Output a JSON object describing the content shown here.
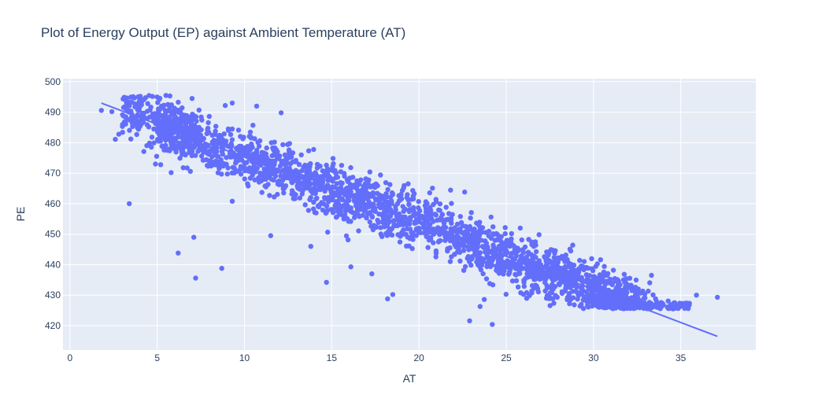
{
  "chart_data": {
    "type": "scatter",
    "title": "Plot of Energy Output (EP) against Ambient Temperature (AT)",
    "xlabel": "AT",
    "ylabel": "PE",
    "xlim": [
      -0.4,
      39.3
    ],
    "ylim": [
      412,
      501
    ],
    "xticks": [
      0,
      5,
      10,
      15,
      20,
      25,
      30,
      35
    ],
    "yticks": [
      420,
      430,
      440,
      450,
      460,
      470,
      480,
      490,
      500
    ],
    "grid": true,
    "legend": "none",
    "colors": {
      "marker": "#636efa",
      "plot_bg": "#e5ecf6",
      "grid": "#ffffff",
      "text": "#2a3f5f"
    },
    "trendline": {
      "x": [
        1.8,
        37.1
      ],
      "y": [
        493,
        416.5
      ]
    },
    "bulk_trend": {
      "intercept": 497.0,
      "slope": -2.17,
      "x_range": [
        1.8,
        37.1
      ]
    },
    "outliers": [
      {
        "x": 3.4,
        "y": 460
      },
      {
        "x": 6.2,
        "y": 443.8
      },
      {
        "x": 7.1,
        "y": 449
      },
      {
        "x": 7.2,
        "y": 435.6
      },
      {
        "x": 8.7,
        "y": 438.8
      },
      {
        "x": 9.3,
        "y": 460.8
      },
      {
        "x": 11.5,
        "y": 449.5
      },
      {
        "x": 14.7,
        "y": 434.2
      },
      {
        "x": 13.8,
        "y": 446
      },
      {
        "x": 16.1,
        "y": 439.3
      },
      {
        "x": 17.3,
        "y": 437
      },
      {
        "x": 18.2,
        "y": 428.8
      },
      {
        "x": 18.5,
        "y": 430.2
      },
      {
        "x": 22.9,
        "y": 421.6
      },
      {
        "x": 23.5,
        "y": 426.3
      },
      {
        "x": 24.2,
        "y": 420.4
      },
      {
        "x": 35.9,
        "y": 430
      },
      {
        "x": 37.1,
        "y": 429.3
      },
      {
        "x": 1.8,
        "y": 490.6
      },
      {
        "x": 2.4,
        "y": 490.2
      },
      {
        "x": 2.8,
        "y": 482.8
      },
      {
        "x": 2.6,
        "y": 481.1
      },
      {
        "x": 3.3,
        "y": 487.5
      },
      {
        "x": 4.9,
        "y": 473
      },
      {
        "x": 5.2,
        "y": 472.8
      },
      {
        "x": 5.8,
        "y": 470.2
      },
      {
        "x": 6.9,
        "y": 470.6
      },
      {
        "x": 12.1,
        "y": 489.8
      },
      {
        "x": 10.7,
        "y": 492
      },
      {
        "x": 9.3,
        "y": 493
      },
      {
        "x": 8.9,
        "y": 492.2
      },
      {
        "x": 7.0,
        "y": 494.5
      },
      {
        "x": 5.5,
        "y": 495.5
      }
    ]
  }
}
